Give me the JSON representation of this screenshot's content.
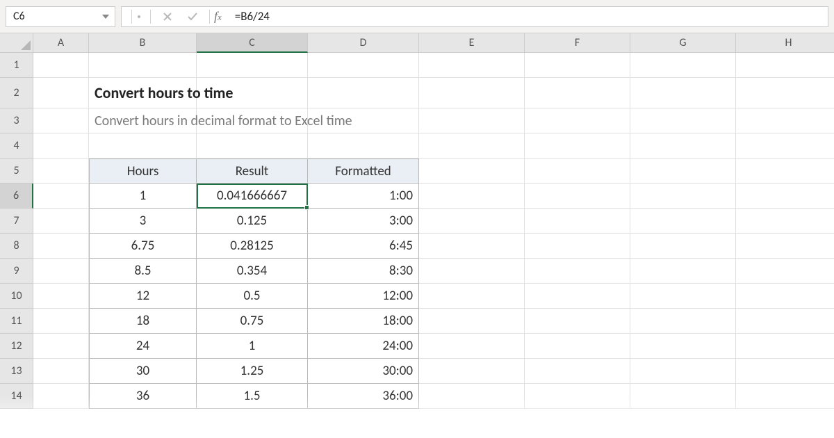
{
  "colors": {
    "grid_bg": "#ffffff",
    "header_bg": "#e6e6e6",
    "header_active_bg": "#d3d3d3",
    "border": "#cccccc",
    "cell_border": "#e0e0e0",
    "selection_border": "#217346",
    "table_header_bg": "#eaeff5",
    "table_border": "#b9b9b9",
    "formula_bar_bg": "#f3f2f1",
    "subtitle_color": "#7a7a7a"
  },
  "formula_bar": {
    "name_box": "C6",
    "formula": "=B6/24"
  },
  "columns": [
    {
      "letter": "A",
      "width": 80
    },
    {
      "letter": "B",
      "width": 155
    },
    {
      "letter": "C",
      "width": 160
    },
    {
      "letter": "D",
      "width": 160
    },
    {
      "letter": "E",
      "width": 152
    },
    {
      "letter": "F",
      "width": 152
    },
    {
      "letter": "G",
      "width": 152
    },
    {
      "letter": "H",
      "width": 152
    }
  ],
  "row_heights": {
    "default": 36,
    "header_row": 28,
    "title_row": 44
  },
  "row_count": 14,
  "active_cell": {
    "col": "C",
    "row": 6
  },
  "content": {
    "title": "Convert hours to time",
    "subtitle": "Convert hours in decimal format to Excel time",
    "headers": [
      "Hours",
      "Result",
      "Formatted"
    ],
    "rows": [
      {
        "hours": "1",
        "result": "0.041666667",
        "formatted": "1:00"
      },
      {
        "hours": "3",
        "result": "0.125",
        "formatted": "3:00"
      },
      {
        "hours": "6.75",
        "result": "0.28125",
        "formatted": "6:45"
      },
      {
        "hours": "8.5",
        "result": "0.354",
        "formatted": "8:30"
      },
      {
        "hours": "12",
        "result": "0.5",
        "formatted": "12:00"
      },
      {
        "hours": "18",
        "result": "0.75",
        "formatted": "18:00"
      },
      {
        "hours": "24",
        "result": "1",
        "formatted": "24:00"
      },
      {
        "hours": "30",
        "result": "1.25",
        "formatted": "30:00"
      },
      {
        "hours": "36",
        "result": "1.5",
        "formatted": "36:00"
      }
    ]
  }
}
